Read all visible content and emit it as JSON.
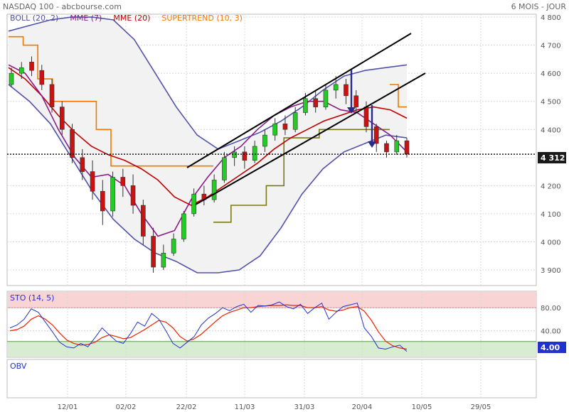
{
  "header": {
    "title": "NASDAQ 100 - abcbourse.com",
    "period": "6 MOIS - JOUR"
  },
  "colors": {
    "boll": "#5252a8",
    "boll_fill": "#f2f2f2",
    "mme7": "#8b1a8b",
    "mme20": "#c00000",
    "supertrend_up": "#f07800",
    "supertrend_down": "#7a7a14",
    "candle_up": "#22cc22",
    "candle_down": "#cc1111",
    "channel": "#000000",
    "arrow": "#2a2a8a",
    "sto_k": "#2233cc",
    "sto_d": "#ee2200",
    "overbought": "#f8d4d4",
    "oversold": "#d8ecd2",
    "grid": "#d8d8d8",
    "marker_bg": "#1a1a1a",
    "sto_marker_bg": "#2233cc"
  },
  "legend": [
    {
      "name": "BOLL",
      "params": "(20, 2)",
      "color": "#5252a8"
    },
    {
      "name": "MME",
      "params": "(7)",
      "color": "#8b1a8b"
    },
    {
      "name": "MME",
      "params": "(20)",
      "color": "#c00000"
    },
    {
      "name": "SUPERTREND",
      "params": "(10, 3)",
      "color": "#f07800"
    }
  ],
  "sto_label": "STO (14, 5)",
  "obv_label": "OBV",
  "last_price_label": "4 312",
  "sto_last_label": "4.00",
  "chart_data": [
    {
      "type": "candlestick",
      "title": "NASDAQ 100",
      "x_tick_labels": [
        "12/01",
        "02/02",
        "22/02",
        "11/03",
        "31/03",
        "20/04",
        "10/05",
        "29/05"
      ],
      "y_tick_labels": [
        "3 900",
        "4 000",
        "4 100",
        "4 200",
        "4 300",
        "4 400",
        "4 500",
        "4 600",
        "4 700",
        "4 800"
      ],
      "ylim": [
        3870,
        4840
      ],
      "last_price": 4312,
      "grid": true,
      "series": [
        {
          "name": "BOLL (20, 2)",
          "kind": "band",
          "upper": [
            4750,
            4770,
            4790,
            4800,
            4800,
            4790,
            4720,
            4600,
            4480,
            4380,
            4330,
            4360,
            4390,
            4430,
            4480,
            4540,
            4590,
            4610,
            4620,
            4630
          ],
          "lower": [
            4560,
            4500,
            4420,
            4300,
            4180,
            4080,
            4010,
            3960,
            3930,
            3890,
            3890,
            3900,
            3950,
            4050,
            4170,
            4260,
            4320,
            4350,
            4380,
            4370
          ]
        },
        {
          "name": "MME (7)",
          "kind": "line",
          "values": [
            4630,
            4600,
            4520,
            4400,
            4300,
            4230,
            4240,
            4200,
            4100,
            4020,
            4040,
            4150,
            4230,
            4300,
            4340,
            4400,
            4450,
            4480,
            4500,
            4500,
            4470,
            4460,
            4420,
            4380,
            4320
          ]
        },
        {
          "name": "MME (20)",
          "kind": "line",
          "values": [
            4620,
            4580,
            4520,
            4450,
            4390,
            4340,
            4310,
            4290,
            4260,
            4220,
            4160,
            4130,
            4160,
            4200,
            4240,
            4280,
            4330,
            4370,
            4400,
            4430,
            4450,
            4470,
            4480,
            4470,
            4440
          ]
        },
        {
          "name": "SUPERTREND (10, 3)",
          "kind": "step",
          "up": [
            4730,
            4700,
            4580,
            4500,
            4500,
            4500,
            4400,
            4270,
            4270,
            4270,
            4270,
            4270,
            4270,
            4270
          ],
          "down": [
            4070,
            4130,
            4130,
            4200,
            4370,
            4370,
            4400,
            4400,
            4400,
            4400
          ]
        }
      ],
      "candles": [
        [
          4560,
          4600,
          4550,
          4620
        ],
        [
          4600,
          4620,
          4580,
          4640
        ],
        [
          4640,
          4610,
          4590,
          4660
        ],
        [
          4610,
          4560,
          4540,
          4630
        ],
        [
          4560,
          4480,
          4460,
          4580
        ],
        [
          4480,
          4400,
          4380,
          4500
        ],
        [
          4400,
          4300,
          4280,
          4420
        ],
        [
          4300,
          4250,
          4220,
          4330
        ],
        [
          4250,
          4180,
          4150,
          4290
        ],
        [
          4180,
          4110,
          4060,
          4220
        ],
        [
          4110,
          4230,
          4090,
          4250
        ],
        [
          4230,
          4200,
          4160,
          4260
        ],
        [
          4200,
          4130,
          4100,
          4240
        ],
        [
          4130,
          4020,
          3990,
          4150
        ],
        [
          4020,
          3910,
          3890,
          4050
        ],
        [
          3910,
          3960,
          3900,
          3990
        ],
        [
          3960,
          4010,
          3950,
          4030
        ],
        [
          4010,
          4100,
          4000,
          4110
        ],
        [
          4100,
          4170,
          4090,
          4190
        ],
        [
          4170,
          4150,
          4130,
          4200
        ],
        [
          4150,
          4220,
          4140,
          4240
        ],
        [
          4220,
          4300,
          4210,
          4320
        ],
        [
          4300,
          4320,
          4270,
          4340
        ],
        [
          4320,
          4290,
          4260,
          4340
        ],
        [
          4290,
          4340,
          4280,
          4360
        ],
        [
          4340,
          4380,
          4320,
          4400
        ],
        [
          4380,
          4420,
          4360,
          4440
        ],
        [
          4420,
          4400,
          4380,
          4450
        ],
        [
          4400,
          4460,
          4390,
          4480
        ],
        [
          4460,
          4510,
          4450,
          4530
        ],
        [
          4510,
          4480,
          4460,
          4540
        ],
        [
          4480,
          4540,
          4470,
          4560
        ],
        [
          4540,
          4560,
          4510,
          4590
        ],
        [
          4560,
          4520,
          4490,
          4580
        ],
        [
          4520,
          4480,
          4460,
          4540
        ],
        [
          4480,
          4410,
          4390,
          4500
        ],
        [
          4410,
          4350,
          4320,
          4420
        ],
        [
          4350,
          4320,
          4300,
          4360
        ],
        [
          4320,
          4360,
          4310,
          4380
        ],
        [
          4360,
          4312,
          4300,
          4370
        ]
      ]
    },
    {
      "type": "line",
      "title": "STO (14, 5)",
      "y_tick_labels": [
        "40.00",
        "80.00"
      ],
      "ylim": [
        0,
        100
      ],
      "overbought": 80,
      "oversold": 20,
      "last_value": 4,
      "series": [
        {
          "name": "%K",
          "values": [
            45,
            50,
            60,
            78,
            72,
            55,
            38,
            20,
            12,
            10,
            18,
            12,
            28,
            45,
            33,
            22,
            18,
            35,
            55,
            48,
            70,
            60,
            40,
            18,
            10,
            20,
            30,
            50,
            62,
            70,
            80,
            75,
            82,
            86,
            72,
            84,
            83,
            85,
            90,
            82,
            78,
            86,
            70,
            80,
            88,
            60,
            72,
            82,
            85,
            88,
            45,
            30,
            10,
            8,
            12,
            15,
            4
          ]
        },
        {
          "name": "%D",
          "values": [
            40,
            42,
            48,
            60,
            66,
            60,
            50,
            36,
            24,
            18,
            15,
            16,
            20,
            28,
            33,
            30,
            26,
            28,
            35,
            42,
            50,
            58,
            55,
            45,
            30,
            22,
            26,
            34,
            45,
            56,
            66,
            72,
            76,
            80,
            80,
            82,
            83,
            84,
            84,
            85,
            84,
            84,
            80,
            80,
            82,
            76,
            74,
            76,
            80,
            82,
            74,
            58,
            38,
            22,
            14,
            10,
            8
          ]
        }
      ]
    },
    {
      "type": "line",
      "title": "OBV",
      "series": []
    }
  ]
}
